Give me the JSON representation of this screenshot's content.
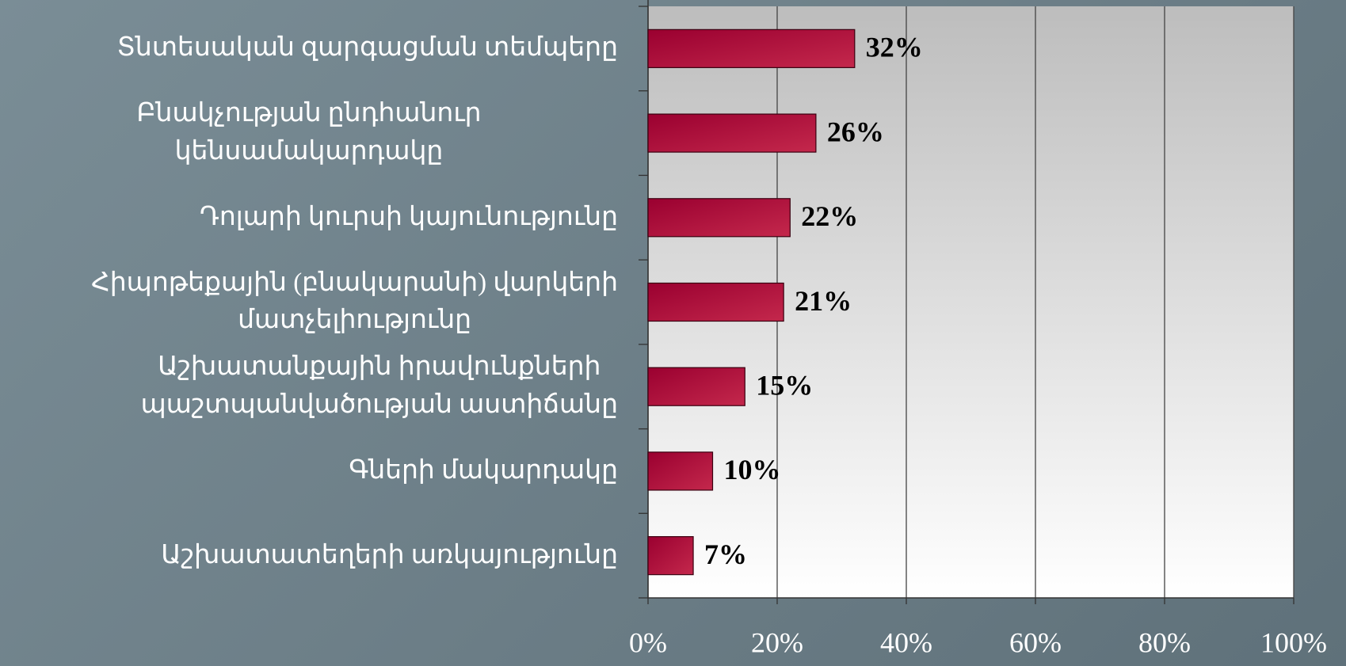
{
  "chart_data": {
    "type": "hbar",
    "categories": [
      "Տնտեսական զարգացման տեմպերը",
      "Բնակչության ընդհանուր կենսամակարդակը",
      "Դոլարի կուրսի կայունությունը",
      "Հիպոթեքային (բնակարանի) վարկերի\nմատչելիությունը",
      "Աշխատանքային իրավունքների\nպաշտպանվածության աստիճանը",
      "Գների մակարդակը",
      "Աշխատատեղերի առկայությունը"
    ],
    "values": [
      32,
      26,
      22,
      21,
      15,
      10,
      7
    ],
    "value_labels": [
      "32%",
      "26%",
      "22%",
      "21%",
      "15%",
      "10%",
      "7%"
    ],
    "color": "#a50f3a",
    "xlim": [
      0,
      100
    ],
    "xticks": [
      {
        "value": 0,
        "label": "0%"
      },
      {
        "value": 20,
        "label": "20%"
      },
      {
        "value": 40,
        "label": "40%"
      },
      {
        "value": 60,
        "label": "60%"
      },
      {
        "value": 80,
        "label": "80%"
      },
      {
        "value": 100,
        "label": "100%"
      }
    ],
    "grid": true
  }
}
